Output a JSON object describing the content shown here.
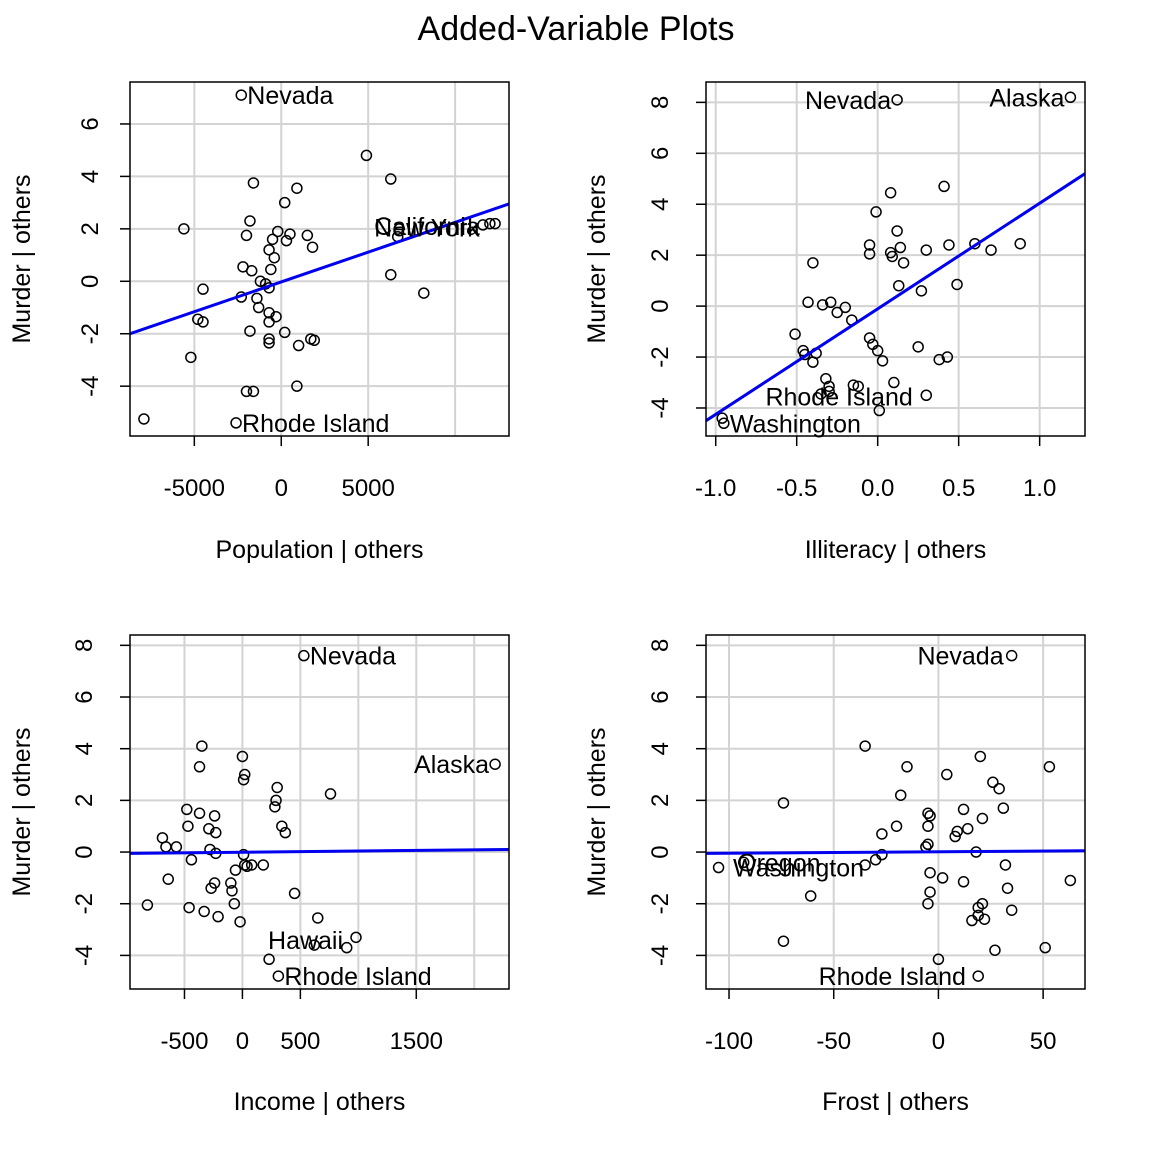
{
  "title": "Added-Variable Plots",
  "chart_data": [
    {
      "type": "scatter",
      "xlabel": "Population | others",
      "ylabel": "Murder  | others",
      "xlim": [
        -8700,
        13100
      ],
      "ylim": [
        -5.9,
        7.6
      ],
      "xticks": [
        -5000,
        0,
        5000
      ],
      "xtick_labels": [
        "-5000",
        "0",
        "5000"
      ],
      "yticks": [
        -4,
        -2,
        0,
        2,
        4,
        6
      ],
      "ytick_labels": [
        "-4",
        "-2",
        "0",
        "2",
        "4",
        "6"
      ],
      "xgrid": [
        -5000,
        0,
        5000,
        10000
      ],
      "ygrid": [
        -4,
        -2,
        0,
        2,
        4,
        6
      ],
      "grid": true,
      "fit_line": {
        "x": [
          -8700,
          13100
        ],
        "y": [
          -2.0,
          2.95
        ],
        "color": "#0000ee"
      },
      "labels": [
        {
          "text": "Nevada",
          "x": -2300,
          "y": 7.1,
          "anchor": "start"
        },
        {
          "text": "California",
          "x": 5000,
          "y": 2.1,
          "anchor": "start"
        },
        {
          "text": "New York",
          "x": 5000,
          "y": 2.05,
          "anchor": "start"
        },
        {
          "text": "Rhode Island",
          "x": -2600,
          "y": -5.4,
          "anchor": "start"
        }
      ],
      "points": [
        [
          -2300,
          7.1
        ],
        [
          4900,
          4.8
        ],
        [
          6300,
          3.9
        ],
        [
          -1600,
          3.75
        ],
        [
          900,
          3.55
        ],
        [
          200,
          3.0
        ],
        [
          -5600,
          2.0
        ],
        [
          -1800,
          2.3
        ],
        [
          -2000,
          1.75
        ],
        [
          -500,
          1.6
        ],
        [
          -200,
          1.9
        ],
        [
          500,
          1.8
        ],
        [
          1500,
          1.75
        ],
        [
          300,
          1.55
        ],
        [
          -700,
          1.2
        ],
        [
          1800,
          1.3
        ],
        [
          -400,
          0.9
        ],
        [
          6700,
          1.7
        ],
        [
          12000,
          2.2
        ],
        [
          12300,
          2.2
        ],
        [
          11600,
          2.15
        ],
        [
          -2200,
          0.55
        ],
        [
          -1700,
          0.4
        ],
        [
          -600,
          0.45
        ],
        [
          6300,
          0.25
        ],
        [
          -1200,
          0.0
        ],
        [
          -900,
          -0.1
        ],
        [
          -700,
          -0.25
        ],
        [
          -4500,
          -0.3
        ],
        [
          -2300,
          -0.6
        ],
        [
          -1400,
          -0.65
        ],
        [
          -4800,
          -1.45
        ],
        [
          -4500,
          -1.55
        ],
        [
          -1300,
          -1.0
        ],
        [
          -700,
          -1.2
        ],
        [
          -300,
          -1.35
        ],
        [
          -700,
          -1.55
        ],
        [
          8200,
          -0.45
        ],
        [
          -1800,
          -1.9
        ],
        [
          200,
          -1.95
        ],
        [
          -700,
          -2.2
        ],
        [
          -700,
          -2.35
        ],
        [
          1700,
          -2.2
        ],
        [
          1900,
          -2.25
        ],
        [
          1000,
          -2.45
        ],
        [
          -5200,
          -2.9
        ],
        [
          -2000,
          -4.2
        ],
        [
          -1600,
          -4.2
        ],
        [
          900,
          -4.0
        ],
        [
          -7900,
          -5.25
        ],
        [
          -2600,
          -5.4
        ]
      ]
    },
    {
      "type": "scatter",
      "xlabel": "Illiteracy | others",
      "ylabel": "Murder  | others",
      "xlim": [
        -1.06,
        1.28
      ],
      "ylim": [
        -5.1,
        8.8
      ],
      "xticks": [
        -1.0,
        -0.5,
        0.0,
        0.5,
        1.0
      ],
      "xtick_labels": [
        "-1.0",
        "-0.5",
        "0.0",
        "0.5",
        "1.0"
      ],
      "yticks": [
        -4,
        -2,
        0,
        2,
        4,
        6,
        8
      ],
      "ytick_labels": [
        "-4",
        "-2",
        "0",
        "2",
        "4",
        "6",
        "8"
      ],
      "xgrid": [
        -1.0,
        -0.5,
        0.0,
        0.5,
        1.0
      ],
      "ygrid": [
        -4,
        -2,
        0,
        2,
        4,
        6,
        8
      ],
      "grid": true,
      "fit_line": {
        "x": [
          -1.06,
          1.28
        ],
        "y": [
          -4.5,
          5.2
        ],
        "color": "#0000ee"
      },
      "labels": [
        {
          "text": "Nevada",
          "x": 0.12,
          "y": 8.1,
          "anchor": "end"
        },
        {
          "text": "Alaska",
          "x": 1.19,
          "y": 8.2,
          "anchor": "end"
        },
        {
          "text": "Rhode Island",
          "x": -0.73,
          "y": -3.55,
          "anchor": "start"
        },
        {
          "text": "Washington",
          "x": -0.95,
          "y": -4.6,
          "anchor": "start"
        }
      ],
      "points": [
        [
          0.12,
          8.1
        ],
        [
          1.19,
          8.2
        ],
        [
          0.41,
          4.7
        ],
        [
          0.08,
          4.45
        ],
        [
          -0.01,
          3.7
        ],
        [
          0.12,
          2.95
        ],
        [
          -0.05,
          2.4
        ],
        [
          0.14,
          2.3
        ],
        [
          0.3,
          2.2
        ],
        [
          0.44,
          2.4
        ],
        [
          0.6,
          2.45
        ],
        [
          0.7,
          2.2
        ],
        [
          0.88,
          2.45
        ],
        [
          -0.05,
          2.05
        ],
        [
          0.08,
          2.1
        ],
        [
          0.09,
          1.95
        ],
        [
          0.16,
          1.7
        ],
        [
          -0.4,
          1.7
        ],
        [
          0.13,
          0.8
        ],
        [
          0.49,
          0.85
        ],
        [
          0.27,
          0.6
        ],
        [
          -0.43,
          0.15
        ],
        [
          -0.34,
          0.05
        ],
        [
          -0.29,
          0.15
        ],
        [
          -0.25,
          -0.25
        ],
        [
          -0.2,
          -0.05
        ],
        [
          -0.16,
          -0.55
        ],
        [
          -0.51,
          -1.1
        ],
        [
          -0.05,
          -1.25
        ],
        [
          -0.03,
          -1.5
        ],
        [
          0.0,
          -1.75
        ],
        [
          -0.46,
          -1.75
        ],
        [
          -0.45,
          -1.9
        ],
        [
          -0.38,
          -1.85
        ],
        [
          -0.4,
          -2.2
        ],
        [
          0.03,
          -2.15
        ],
        [
          0.25,
          -1.6
        ],
        [
          0.38,
          -2.1
        ],
        [
          0.43,
          -2.0
        ],
        [
          -0.32,
          -2.85
        ],
        [
          -0.3,
          -3.15
        ],
        [
          -0.15,
          -3.1
        ],
        [
          -0.12,
          -3.15
        ],
        [
          0.1,
          -3.0
        ],
        [
          -0.35,
          -3.45
        ],
        [
          -0.3,
          -3.35
        ],
        [
          0.3,
          -3.5
        ],
        [
          0.01,
          -4.1
        ],
        [
          -0.95,
          -4.6
        ],
        [
          -0.96,
          -4.4
        ]
      ]
    },
    {
      "type": "scatter",
      "xlabel": "Income | others",
      "ylabel": "Murder  | others",
      "xlim": [
        -970,
        2300
      ],
      "ylim": [
        -5.3,
        8.4
      ],
      "xticks": [
        -500,
        0,
        500,
        1500
      ],
      "xtick_labels": [
        "-500",
        "0",
        "500",
        "1500"
      ],
      "yticks": [
        -4,
        -2,
        0,
        2,
        4,
        6,
        8
      ],
      "ytick_labels": [
        "-4",
        "-2",
        "0",
        "2",
        "4",
        "6",
        "8"
      ],
      "xgrid": [
        -500,
        0,
        500,
        1000,
        1500,
        2000
      ],
      "ygrid": [
        -4,
        -2,
        0,
        2,
        4,
        6,
        8
      ],
      "grid": true,
      "fit_line": {
        "x": [
          -970,
          2300
        ],
        "y": [
          -0.05,
          0.1
        ],
        "color": "#0000ee"
      },
      "labels": [
        {
          "text": "Nevada",
          "x": 530,
          "y": 7.6,
          "anchor": "start"
        },
        {
          "text": "Alaska",
          "x": 2180,
          "y": 3.4,
          "anchor": "end"
        },
        {
          "text": "Hawaii",
          "x": 920,
          "y": -3.4,
          "anchor": "end"
        },
        {
          "text": "Rhode Island",
          "x": 310,
          "y": -4.8,
          "anchor": "start"
        }
      ],
      "points": [
        [
          530,
          7.6
        ],
        [
          2180,
          3.4
        ],
        [
          -350,
          4.1
        ],
        [
          0,
          3.7
        ],
        [
          -370,
          3.3
        ],
        [
          20,
          3.0
        ],
        [
          10,
          2.8
        ],
        [
          300,
          2.5
        ],
        [
          760,
          2.25
        ],
        [
          290,
          2.0
        ],
        [
          280,
          1.75
        ],
        [
          -480,
          1.65
        ],
        [
          -370,
          1.5
        ],
        [
          -240,
          1.4
        ],
        [
          -470,
          1.0
        ],
        [
          -290,
          0.9
        ],
        [
          -230,
          0.75
        ],
        [
          340,
          1.0
        ],
        [
          370,
          0.75
        ],
        [
          -690,
          0.55
        ],
        [
          -660,
          0.2
        ],
        [
          -570,
          0.2
        ],
        [
          -280,
          0.1
        ],
        [
          -230,
          -0.05
        ],
        [
          -440,
          -0.3
        ],
        [
          10,
          -0.1
        ],
        [
          20,
          -0.5
        ],
        [
          40,
          -0.55
        ],
        [
          80,
          -0.5
        ],
        [
          180,
          -0.5
        ],
        [
          -60,
          -0.7
        ],
        [
          -640,
          -1.05
        ],
        [
          -240,
          -1.2
        ],
        [
          -270,
          -1.4
        ],
        [
          -100,
          -1.2
        ],
        [
          -90,
          -1.5
        ],
        [
          450,
          -1.6
        ],
        [
          -820,
          -2.05
        ],
        [
          -460,
          -2.15
        ],
        [
          -330,
          -2.3
        ],
        [
          -70,
          -2.0
        ],
        [
          -210,
          -2.5
        ],
        [
          -20,
          -2.7
        ],
        [
          650,
          -2.55
        ],
        [
          980,
          -3.3
        ],
        [
          900,
          -3.7
        ],
        [
          620,
          -3.6
        ],
        [
          230,
          -4.15
        ],
        [
          310,
          -4.8
        ]
      ]
    },
    {
      "type": "scatter",
      "xlabel": "Frost | others",
      "ylabel": "Murder  | others",
      "xlim": [
        -111,
        70
      ],
      "ylim": [
        -5.3,
        8.4
      ],
      "xticks": [
        -100,
        -50,
        0,
        50
      ],
      "xtick_labels": [
        "-100",
        "-50",
        "0",
        "50"
      ],
      "yticks": [
        -4,
        -2,
        0,
        2,
        4,
        6,
        8
      ],
      "ytick_labels": [
        "-4",
        "-2",
        "0",
        "2",
        "4",
        "6",
        "8"
      ],
      "xgrid": [
        -100,
        -50,
        0,
        50
      ],
      "ygrid": [
        -4,
        -2,
        0,
        2,
        4,
        6,
        8
      ],
      "grid": true,
      "fit_line": {
        "x": [
          -111,
          70
        ],
        "y": [
          -0.05,
          0.05
        ],
        "color": "#0000ee"
      },
      "labels": [
        {
          "text": "Nevada",
          "x": 34,
          "y": 7.6,
          "anchor": "end"
        },
        {
          "text": "Oregon",
          "x": -99,
          "y": -0.4,
          "anchor": "start"
        },
        {
          "text": "Washington",
          "x": -101,
          "y": -0.6,
          "anchor": "start"
        },
        {
          "text": "Rhode Island",
          "x": 16,
          "y": -4.8,
          "anchor": "end"
        }
      ],
      "points": [
        [
          35,
          7.6
        ],
        [
          -35,
          4.1
        ],
        [
          53,
          3.3
        ],
        [
          20,
          3.7
        ],
        [
          -15,
          3.3
        ],
        [
          4,
          3.0
        ],
        [
          26,
          2.7
        ],
        [
          29,
          2.45
        ],
        [
          -18,
          2.2
        ],
        [
          -74,
          1.9
        ],
        [
          31,
          1.7
        ],
        [
          12,
          1.65
        ],
        [
          -5,
          1.5
        ],
        [
          -4,
          1.4
        ],
        [
          21,
          1.3
        ],
        [
          -5,
          1.0
        ],
        [
          -20,
          1.0
        ],
        [
          14,
          0.9
        ],
        [
          9,
          0.8
        ],
        [
          -27,
          0.7
        ],
        [
          8,
          0.6
        ],
        [
          -5,
          0.3
        ],
        [
          -6,
          0.2
        ],
        [
          18,
          0.0
        ],
        [
          -27,
          -0.1
        ],
        [
          -30,
          -0.3
        ],
        [
          -35,
          -0.5
        ],
        [
          32,
          -0.5
        ],
        [
          -4,
          -0.8
        ],
        [
          2,
          -1.0
        ],
        [
          -105,
          -0.6
        ],
        [
          -93,
          -0.4
        ],
        [
          63,
          -1.1
        ],
        [
          12,
          -1.15
        ],
        [
          33,
          -1.4
        ],
        [
          -4,
          -1.55
        ],
        [
          -61,
          -1.7
        ],
        [
          21,
          -2.0
        ],
        [
          19,
          -2.15
        ],
        [
          -5,
          -2.0
        ],
        [
          35,
          -2.25
        ],
        [
          22,
          -2.6
        ],
        [
          16,
          -2.65
        ],
        [
          19,
          -2.45
        ],
        [
          -74,
          -3.45
        ],
        [
          27,
          -3.8
        ],
        [
          51,
          -3.7
        ],
        [
          0,
          -4.15
        ],
        [
          19,
          -4.8
        ]
      ]
    }
  ]
}
